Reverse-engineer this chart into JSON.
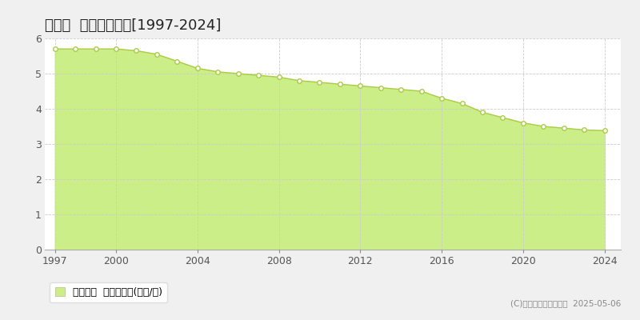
{
  "title": "東栄町  基準地価推移[1997-2024]",
  "years": [
    1997,
    1998,
    1999,
    2000,
    2001,
    2002,
    2003,
    2004,
    2005,
    2006,
    2007,
    2008,
    2009,
    2010,
    2011,
    2012,
    2013,
    2014,
    2015,
    2016,
    2017,
    2018,
    2019,
    2020,
    2021,
    2022,
    2023,
    2024
  ],
  "values": [
    5.7,
    5.7,
    5.7,
    5.7,
    5.65,
    5.55,
    5.35,
    5.15,
    5.05,
    5.0,
    4.95,
    4.9,
    4.8,
    4.75,
    4.7,
    4.65,
    4.6,
    4.55,
    4.5,
    4.3,
    4.15,
    3.9,
    3.75,
    3.6,
    3.5,
    3.45,
    3.4,
    3.38
  ],
  "line_color": "#aacc44",
  "fill_color": "#ccee88",
  "marker_facecolor": "#ffffff",
  "marker_edgecolor": "#aacc44",
  "background_color": "#f0f0f0",
  "plot_bg_color": "#ffffff",
  "grid_color": "#cccccc",
  "ylim": [
    0,
    6
  ],
  "yticks": [
    0,
    1,
    2,
    3,
    4,
    5,
    6
  ],
  "xticks": [
    1997,
    2000,
    2004,
    2008,
    2012,
    2016,
    2020,
    2024
  ],
  "legend_label": "基準地価  平均坪単価(万円/坪)",
  "copyright": "(C)土地価格ドットコム  2025-05-06",
  "title_fontsize": 13,
  "axis_fontsize": 9,
  "legend_fontsize": 9
}
